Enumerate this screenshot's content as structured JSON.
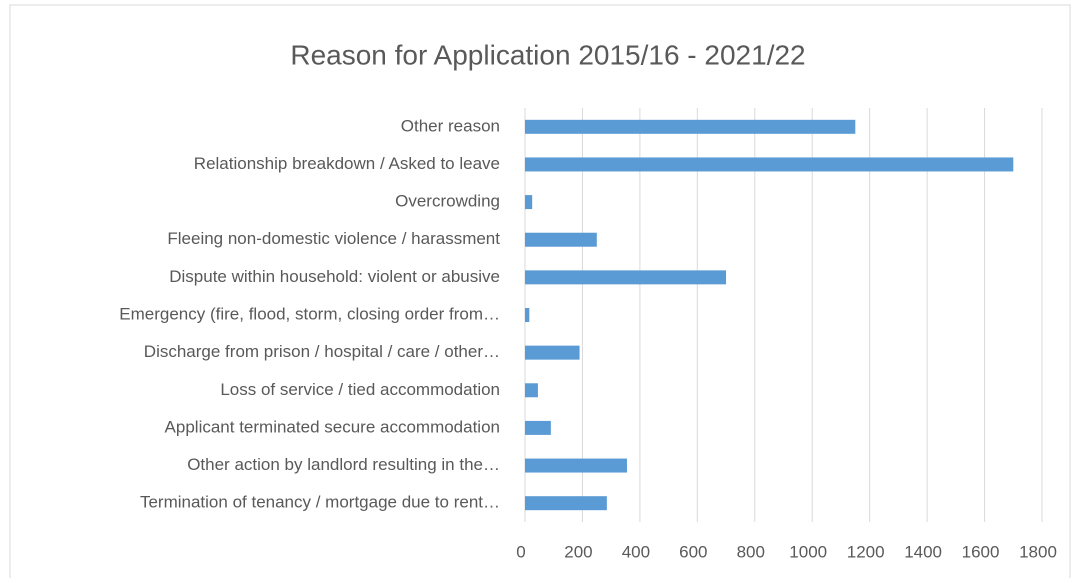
{
  "chart_data": {
    "type": "barh",
    "title": "Reason for Application 2015/16 - 2021/22",
    "categories": [
      "Other reason",
      "Relationship breakdown / Asked to leave",
      "Overcrowding",
      "Fleeing non-domestic violence / harassment",
      "Dispute within household: violent or abusive",
      "Emergency (fire, flood, storm, closing order from…",
      "Discharge from prison / hospital / care / other…",
      "Loss of service / tied accommodation",
      "Applicant terminated secure accommodation",
      "Other action by landlord resulting in the…",
      "Termination of tenancy / mortgage due to rent…"
    ],
    "values": [
      1150,
      1700,
      25,
      250,
      700,
      15,
      190,
      45,
      90,
      355,
      285
    ],
    "color": "#5b9bd5",
    "xlim": [
      0,
      1800
    ],
    "xticks": [
      0,
      200,
      400,
      600,
      800,
      1000,
      1200,
      1400,
      1600,
      1800
    ],
    "grid": true
  }
}
